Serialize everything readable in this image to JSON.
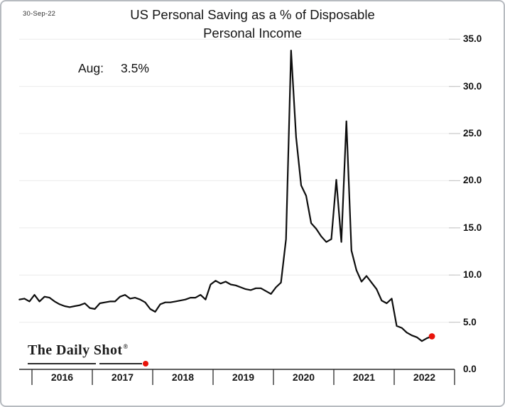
{
  "window": {
    "date_label": "30-Sep-22"
  },
  "header": {
    "title_line1": "US Personal Saving as a % of Disposable",
    "title_line2": "Personal Income"
  },
  "annotation": {
    "label": "Aug:",
    "value": "3.5%"
  },
  "logo": {
    "text": "The Daily Shot",
    "mark": "®"
  },
  "colors": {
    "line": "#0d0d0d",
    "marker_red": "#e8130a",
    "grid": "#ececec",
    "grid_dash": "#c9c9c9",
    "axis": "#2a2a2a"
  },
  "chart_data": {
    "type": "line",
    "title": "US Personal Saving as a % of Disposable Personal Income",
    "ylabel": "",
    "xlabel": "",
    "y_axis_side": "right",
    "ylim": [
      0,
      35
    ],
    "y_tick_labels": [
      "35.0",
      "30.0",
      "25.0",
      "20.0",
      "15.0",
      "10.0",
      "5.0",
      "0.0"
    ],
    "x_tick_labels": [
      "2016",
      "2017",
      "2018",
      "2019",
      "2020",
      "2021",
      "2022"
    ],
    "grid": "horizontal",
    "start_month": "2015-10",
    "end_month": "2022-08",
    "values": [
      7.4,
      7.5,
      7.2,
      7.9,
      7.2,
      7.7,
      7.6,
      7.2,
      6.9,
      6.7,
      6.6,
      6.7,
      6.8,
      7.0,
      6.5,
      6.4,
      7.0,
      7.1,
      7.2,
      7.2,
      7.7,
      7.9,
      7.5,
      7.6,
      7.4,
      7.1,
      6.4,
      6.1,
      6.9,
      7.1,
      7.1,
      7.2,
      7.3,
      7.4,
      7.6,
      7.6,
      7.9,
      7.4,
      9.0,
      9.4,
      9.1,
      9.3,
      9.0,
      8.9,
      8.7,
      8.5,
      8.4,
      8.6,
      8.6,
      8.3,
      8.0,
      8.7,
      9.2,
      13.8,
      33.8,
      24.6,
      19.5,
      18.4,
      15.5,
      14.9,
      14.1,
      13.5,
      13.8,
      20.1,
      13.5,
      26.3,
      12.6,
      10.5,
      9.3,
      9.9,
      9.2,
      8.5,
      7.3,
      7.0,
      7.5,
      4.6,
      4.4,
      3.9,
      3.6,
      3.4,
      3.0,
      3.3,
      3.5
    ],
    "latest_point": {
      "month": "Aug",
      "value": 3.5,
      "marker": "red-dot"
    },
    "legend": []
  }
}
